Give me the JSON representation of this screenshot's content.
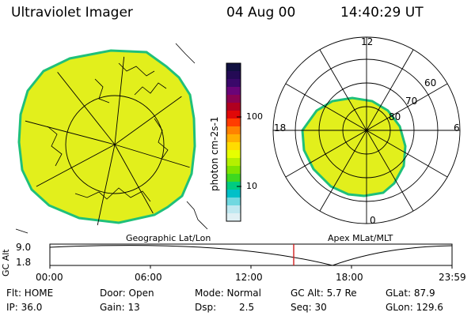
{
  "header": {
    "instrument": "Ultraviolet Imager",
    "date": "04 Aug 00",
    "time": "14:40:29 UT"
  },
  "colorbar": {
    "units_label": "photon cm-2s-1",
    "ticks": [
      "100",
      "10"
    ],
    "colors": [
      "#101040",
      "#240a55",
      "#3a086a",
      "#6a0478",
      "#8a0252",
      "#b00020",
      "#e00808",
      "#ff3c00",
      "#ff8200",
      "#ffb000",
      "#ffdc00",
      "#e6ff00",
      "#b4f000",
      "#7ee400",
      "#3ed820",
      "#00cc80",
      "#00c0c8",
      "#70d8e0",
      "#bfe8f0",
      "#e0f0f4"
    ]
  },
  "geo_map": {
    "label": "Geographic Lat/Lon",
    "fill_color": "#e2ef1c",
    "edge_color": "#1fc07a"
  },
  "polar_map": {
    "label": "Apex MLat/MLT",
    "mlt_labels": {
      "top": "12",
      "left": "18",
      "right": "6",
      "bottom": "0"
    },
    "lat_labels": [
      "60",
      "70",
      "80"
    ]
  },
  "altitude_plot": {
    "ylabel": "GC Alt",
    "yticks": [
      "9.0",
      "1.8"
    ],
    "xticks": [
      "00:00",
      "06:00",
      "12:00",
      "18:00",
      "23:59"
    ],
    "marker_color": "#d02020"
  },
  "status": {
    "flt": "Flt: HOME",
    "ip": "IP: 36.0",
    "door": "Door: Open",
    "gain": "Gain: 13",
    "mode": "Mode: Normal",
    "dsp_label": "Dsp:",
    "dsp_value": "2.5",
    "gc_alt": "GC Alt: 5.7 Re",
    "seq": "Seq: 30",
    "glat": "GLat: 87.9",
    "glon": "GLon: 129.6"
  }
}
